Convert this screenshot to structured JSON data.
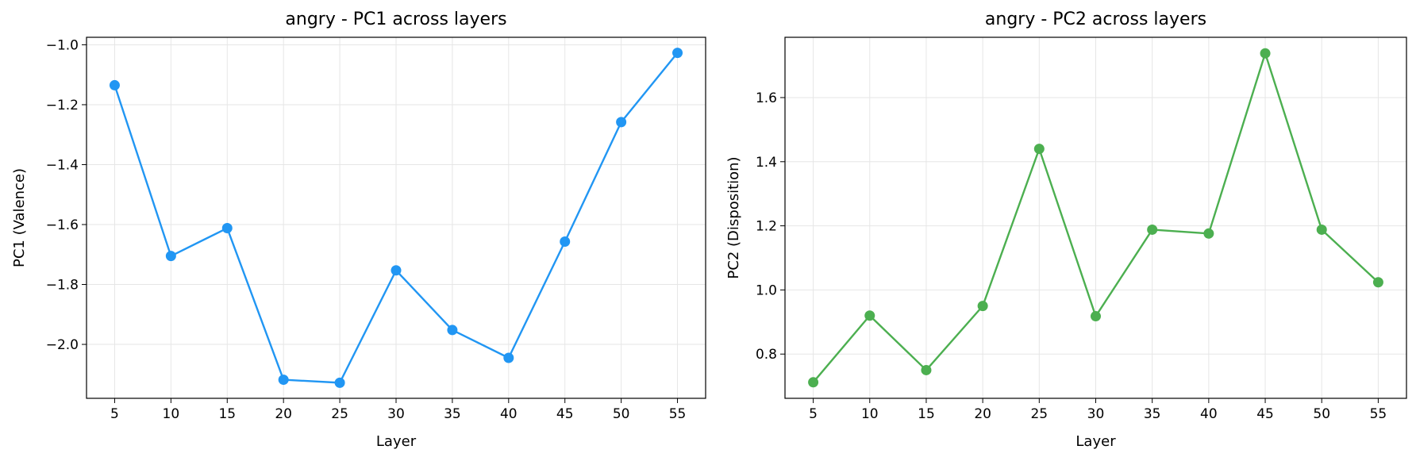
{
  "chart_data": [
    {
      "type": "line",
      "title": "angry - PC1 across layers",
      "xlabel": "Layer",
      "ylabel": "PC1 (Valence)",
      "x": [
        5,
        10,
        15,
        20,
        25,
        30,
        35,
        40,
        45,
        50,
        55
      ],
      "xticks": [
        "5",
        "10",
        "15",
        "20",
        "25",
        "30",
        "35",
        "40",
        "45",
        "50",
        "55"
      ],
      "series": [
        {
          "values": [
            -1.135,
            -1.705,
            -1.612,
            -2.118,
            -2.128,
            -1.753,
            -1.952,
            -2.045,
            -1.657,
            -1.258,
            -1.027
          ]
        }
      ],
      "xlim": [
        2.5,
        57.5
      ],
      "ylim": [
        -2.18,
        -0.975
      ],
      "yticks": [
        -2.0,
        -1.8,
        -1.6,
        -1.4,
        -1.2,
        -1.0
      ],
      "ytick_labels": [
        "−2.0",
        "−1.8",
        "−1.6",
        "−1.4",
        "−1.2",
        "−1.0"
      ],
      "grid": true,
      "color": "#2196F3"
    },
    {
      "type": "line",
      "title": "angry - PC2 across layers",
      "xlabel": "Layer",
      "ylabel": "PC2 (Disposition)",
      "x": [
        5,
        10,
        15,
        20,
        25,
        30,
        35,
        40,
        45,
        50,
        55
      ],
      "xticks": [
        "5",
        "10",
        "15",
        "20",
        "25",
        "30",
        "35",
        "40",
        "45",
        "50",
        "55"
      ],
      "series": [
        {
          "values": [
            0.712,
            0.92,
            0.75,
            0.95,
            1.44,
            0.918,
            1.188,
            1.176,
            1.738,
            1.188,
            1.024
          ]
        }
      ],
      "xlim": [
        2.5,
        57.5
      ],
      "ylim": [
        0.662,
        1.788
      ],
      "yticks": [
        0.8,
        1.0,
        1.2,
        1.4,
        1.6
      ],
      "ytick_labels": [
        "0.8",
        "1.0",
        "1.2",
        "1.4",
        "1.6"
      ],
      "grid": true,
      "color": "#4CAF50"
    }
  ]
}
